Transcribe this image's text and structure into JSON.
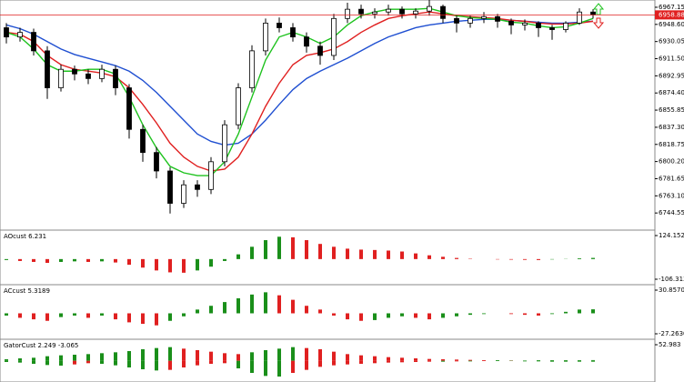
{
  "chart_data": [
    {
      "type": "candlestick",
      "open": [
        6945,
        6935,
        6940,
        6920,
        6880,
        6900,
        6895,
        6890,
        6900,
        6880,
        6835,
        6810,
        6790,
        6755,
        6775,
        6770,
        6800,
        6840,
        6880,
        6920,
        6950,
        6945,
        6935,
        6925,
        6915,
        6955,
        6965,
        6960,
        6962,
        6965,
        6960,
        6963,
        6968,
        6955,
        6950,
        6955,
        6957,
        6952,
        6948,
        6950,
        6945,
        6943,
        6950,
        6962
      ],
      "high": [
        6950,
        6945,
        6944,
        6925,
        6905,
        6904,
        6900,
        6905,
        6904,
        6884,
        6840,
        6816,
        6794,
        6780,
        6780,
        6805,
        6845,
        6885,
        6926,
        6955,
        6956,
        6950,
        6940,
        6930,
        6960,
        6972,
        6970,
        6966,
        6970,
        6968,
        6966,
        6975,
        6970,
        6958,
        6958,
        6962,
        6960,
        6955,
        6954,
        6952,
        6948,
        6952,
        6966,
        6965
      ],
      "low": [
        6928,
        6930,
        6915,
        6868,
        6876,
        6888,
        6884,
        6886,
        6872,
        6825,
        6800,
        6782,
        6744,
        6750,
        6762,
        6765,
        6795,
        6835,
        6875,
        6915,
        6940,
        6930,
        6918,
        6905,
        6910,
        6950,
        6955,
        6955,
        6958,
        6955,
        6955,
        6958,
        6950,
        6940,
        6945,
        6950,
        6945,
        6938,
        6942,
        6935,
        6932,
        6940,
        6948,
        6955
      ],
      "close": [
        6935,
        6940,
        6920,
        6880,
        6900,
        6895,
        6890,
        6900,
        6880,
        6835,
        6810,
        6790,
        6755,
        6775,
        6770,
        6800,
        6840,
        6880,
        6920,
        6950,
        6945,
        6935,
        6925,
        6915,
        6955,
        6965,
        6960,
        6962,
        6965,
        6960,
        6963,
        6968,
        6955,
        6950,
        6955,
        6957,
        6952,
        6948,
        6950,
        6945,
        6943,
        6950,
        6962,
        6959
      ],
      "bull_color": "#ffffff",
      "bear_color": "#000000",
      "series": [
        {
          "color": "#1f4fd1",
          "values": [
            6948,
            6944,
            6938,
            6930,
            6922,
            6916,
            6912,
            6908,
            6904,
            6898,
            6888,
            6875,
            6860,
            6845,
            6830,
            6822,
            6818,
            6820,
            6830,
            6845,
            6862,
            6878,
            6890,
            6898,
            6905,
            6912,
            6920,
            6928,
            6935,
            6940,
            6945,
            6948,
            6950,
            6952,
            6953,
            6954,
            6954,
            6953,
            6952,
            6951,
            6950,
            6950,
            6951,
            6952
          ]
        },
        {
          "color": "#e02020",
          "values": [
            6940,
            6938,
            6930,
            6915,
            6905,
            6900,
            6898,
            6896,
            6892,
            6880,
            6862,
            6842,
            6820,
            6805,
            6795,
            6790,
            6792,
            6805,
            6830,
            6860,
            6885,
            6905,
            6915,
            6918,
            6922,
            6930,
            6940,
            6948,
            6955,
            6958,
            6960,
            6962,
            6960,
            6958,
            6957,
            6956,
            6955,
            6953,
            6952,
            6950,
            6949,
            6949,
            6950,
            6952
          ]
        },
        {
          "color": "#1ec21e",
          "values": [
            6940,
            6935,
            6922,
            6905,
            6898,
            6898,
            6900,
            6900,
            6895,
            6870,
            6840,
            6815,
            6795,
            6788,
            6785,
            6785,
            6800,
            6830,
            6870,
            6910,
            6935,
            6940,
            6935,
            6928,
            6935,
            6948,
            6958,
            6962,
            6965,
            6965,
            6965,
            6966,
            6962,
            6958,
            6956,
            6955,
            6954,
            6951,
            6950,
            6947,
            6945,
            6946,
            6950,
            6955
          ]
        }
      ],
      "current_price": {
        "value": 6958.88,
        "label": "6958.88"
      },
      "ylim": [
        6727,
        6975
      ],
      "yticks": [
        6967.15,
        {
          "value": 6948.6,
          "label": "6948.60"
        },
        6930.05,
        {
          "value": 6911.5,
          "label": "6911.50"
        },
        6892.95,
        {
          "value": 6874.4,
          "label": "6874.40"
        },
        6855.85,
        {
          "value": 6837.3,
          "label": "6837.30"
        },
        6818.75,
        {
          "value": 6800.2,
          "label": "6800.20"
        },
        6781.65,
        {
          "value": 6763.1,
          "label": "6763.10"
        },
        6744.55
      ]
    },
    {
      "type": "bar",
      "title": "AOcust 6.231",
      "up_color": "#1a8f1a",
      "down_color": "#e02020",
      "values": [
        -5,
        -10,
        -15,
        -20,
        -15,
        -12,
        -15,
        -12,
        -18,
        -30,
        -45,
        -60,
        -70,
        -72,
        -60,
        -40,
        -10,
        25,
        65,
        100,
        118,
        115,
        100,
        80,
        65,
        55,
        50,
        48,
        45,
        40,
        30,
        20,
        12,
        6,
        2,
        0,
        -2,
        -3,
        -4,
        -5,
        -2,
        1,
        4,
        6.231
      ],
      "ylim": [
        -106.313,
        124.152
      ],
      "yticks": [
        124.152,
        -106.313
      ]
    },
    {
      "type": "bar",
      "title": "ACcust 5.3189",
      "up_color": "#1a8f1a",
      "down_color": "#e02020",
      "values": [
        -3,
        -6,
        -8,
        -10,
        -5,
        -3,
        -6,
        -3,
        -8,
        -12,
        -14,
        -16,
        -10,
        -4,
        5,
        10,
        15,
        20,
        25,
        28,
        24,
        18,
        10,
        5,
        -3,
        -8,
        -10,
        -9,
        -6,
        -4,
        -6,
        -8,
        -6,
        -4,
        -2,
        -1,
        0,
        -1,
        -2,
        -3,
        -1,
        2,
        5,
        5.3189
      ],
      "ylim": [
        -27.263,
        30.857
      ],
      "yticks": [
        {
          "value": 30.857,
          "label": "30.8570"
        },
        {
          "value": -27.263,
          "label": "-27.2630"
        }
      ]
    },
    {
      "type": "gator",
      "title": "GatorCust 2.249 -3.065",
      "up_color": "#1a8f1a",
      "down_color": "#e02020",
      "series": [
        {
          "values": [
            5,
            8,
            10,
            15,
            18,
            20,
            22,
            25,
            28,
            32,
            38,
            42,
            45,
            40,
            35,
            30,
            25,
            22,
            28,
            35,
            40,
            45,
            42,
            38,
            30,
            22,
            18,
            15,
            12,
            10,
            8,
            6,
            5,
            4,
            3,
            2,
            2,
            1,
            1,
            2,
            2,
            2,
            2,
            2.249
          ]
        },
        {
          "values": [
            -4,
            -6,
            -10,
            -14,
            -16,
            -12,
            -8,
            -10,
            -15,
            -22,
            -28,
            -32,
            -30,
            -22,
            -15,
            -10,
            -8,
            -25,
            -40,
            -50,
            -52,
            -40,
            -30,
            -20,
            -15,
            -12,
            -10,
            -8,
            -6,
            -5,
            -4,
            -3,
            -3,
            -2,
            -2,
            -1,
            -1,
            -1,
            -2,
            -2,
            -3,
            -3,
            -3,
            -3.065
          ]
        }
      ],
      "ylim": [
        -55,
        52.983
      ],
      "yticks": [
        52.983
      ]
    }
  ]
}
